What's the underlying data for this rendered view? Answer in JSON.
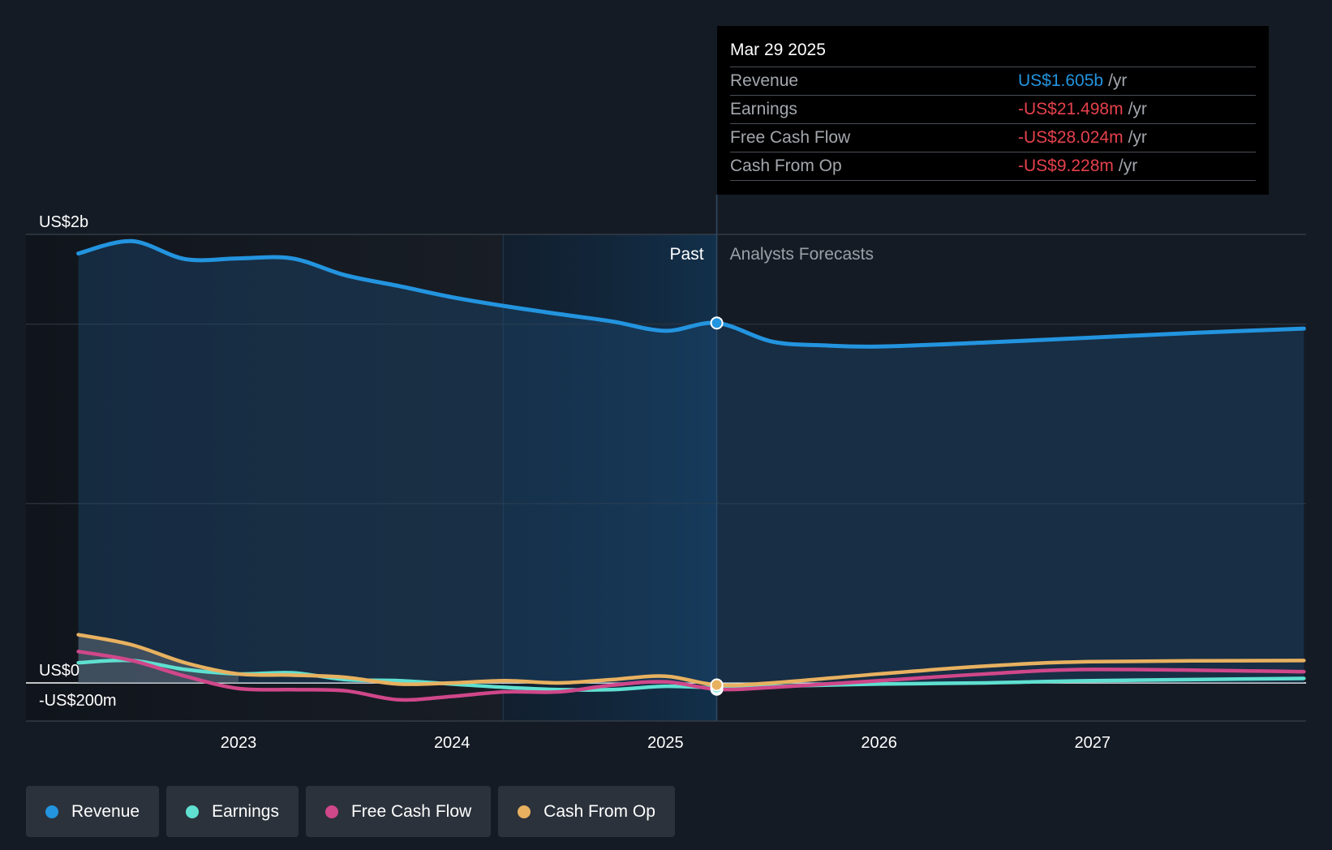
{
  "tooltip": {
    "date": "Mar 29 2025",
    "rows": [
      {
        "label": "Revenue",
        "value": "US$1.605b",
        "unit": "/yr",
        "color": "#2394df"
      },
      {
        "label": "Earnings",
        "value": "-US$21.498m",
        "unit": "/yr",
        "color": "#e5414c"
      },
      {
        "label": "Free Cash Flow",
        "value": "-US$28.024m",
        "unit": "/yr",
        "color": "#e5414c"
      },
      {
        "label": "Cash From Op",
        "value": "-US$9.228m",
        "unit": "/yr",
        "color": "#e5414c"
      }
    ]
  },
  "legend": [
    {
      "label": "Revenue",
      "color": "#2394df"
    },
    {
      "label": "Earnings",
      "color": "#5fe0d0"
    },
    {
      "label": "Free Cash Flow",
      "color": "#d0478a"
    },
    {
      "label": "Cash From Op",
      "color": "#e8b160"
    }
  ],
  "chart_data": {
    "type": "line",
    "y_tick_labels": [
      {
        "label": "US$2b",
        "value": 2000
      },
      {
        "label": "US$0",
        "value": 0
      },
      {
        "label": "-US$200m",
        "value": -200
      }
    ],
    "x_tick_labels": [
      {
        "label": "2023",
        "value": 2023.0
      },
      {
        "label": "2024",
        "value": 2024.0
      },
      {
        "label": "2025",
        "value": 2025.0
      },
      {
        "label": "2026",
        "value": 2026.0
      },
      {
        "label": "2027",
        "value": 2027.0
      }
    ],
    "xlim": [
      2022.0,
      2027.99
    ],
    "ylim": [
      -200,
      2000
    ],
    "past_label": "Past",
    "forecast_label": "Analysts Forecasts",
    "divider_x": 2025.24,
    "highlight_start_x": 2024.24,
    "series": [
      {
        "name": "Revenue",
        "color": "#2394df",
        "points": [
          [
            2022.25,
            1915
          ],
          [
            2022.5,
            1970
          ],
          [
            2022.75,
            1890
          ],
          [
            2023.0,
            1893
          ],
          [
            2023.25,
            1893
          ],
          [
            2023.5,
            1818
          ],
          [
            2023.75,
            1770
          ],
          [
            2024.0,
            1720
          ],
          [
            2024.25,
            1680
          ],
          [
            2024.5,
            1645
          ],
          [
            2024.75,
            1612
          ],
          [
            2025.0,
            1570
          ],
          [
            2025.24,
            1605
          ],
          [
            2025.5,
            1522
          ],
          [
            2025.75,
            1505
          ],
          [
            2026.0,
            1500
          ],
          [
            2026.5,
            1518
          ],
          [
            2027.0,
            1540
          ],
          [
            2027.5,
            1562
          ],
          [
            2027.99,
            1580
          ]
        ]
      },
      {
        "name": "Earnings",
        "color": "#5fe0d0",
        "points": [
          [
            2022.25,
            90
          ],
          [
            2022.5,
            100
          ],
          [
            2022.75,
            60
          ],
          [
            2023.0,
            40
          ],
          [
            2023.25,
            45
          ],
          [
            2023.5,
            15
          ],
          [
            2023.75,
            10
          ],
          [
            2024.0,
            -5
          ],
          [
            2024.25,
            -20
          ],
          [
            2024.5,
            -30
          ],
          [
            2024.75,
            -30
          ],
          [
            2025.0,
            -15
          ],
          [
            2025.24,
            -21
          ],
          [
            2025.5,
            -15
          ],
          [
            2026.0,
            -5
          ],
          [
            2026.5,
            0
          ],
          [
            2027.0,
            10
          ],
          [
            2027.99,
            20
          ]
        ]
      },
      {
        "name": "Free Cash Flow",
        "color": "#d0478a",
        "points": [
          [
            2022.25,
            140
          ],
          [
            2022.5,
            100
          ],
          [
            2022.75,
            30
          ],
          [
            2023.0,
            -25
          ],
          [
            2023.25,
            -30
          ],
          [
            2023.5,
            -35
          ],
          [
            2023.75,
            -75
          ],
          [
            2024.0,
            -60
          ],
          [
            2024.25,
            -40
          ],
          [
            2024.5,
            -40
          ],
          [
            2024.75,
            -10
          ],
          [
            2025.0,
            5
          ],
          [
            2025.24,
            -28
          ],
          [
            2025.5,
            -20
          ],
          [
            2026.0,
            10
          ],
          [
            2026.5,
            40
          ],
          [
            2027.0,
            60
          ],
          [
            2027.99,
            50
          ]
        ]
      },
      {
        "name": "Cash From Op",
        "color": "#e8b160",
        "points": [
          [
            2022.25,
            215
          ],
          [
            2022.5,
            170
          ],
          [
            2022.75,
            90
          ],
          [
            2023.0,
            40
          ],
          [
            2023.25,
            35
          ],
          [
            2023.5,
            25
          ],
          [
            2023.75,
            -5
          ],
          [
            2024.0,
            0
          ],
          [
            2024.25,
            10
          ],
          [
            2024.5,
            0
          ],
          [
            2024.75,
            15
          ],
          [
            2025.0,
            30
          ],
          [
            2025.24,
            -9
          ],
          [
            2025.5,
            0
          ],
          [
            2026.0,
            40
          ],
          [
            2026.5,
            75
          ],
          [
            2027.0,
            95
          ],
          [
            2027.99,
            100
          ]
        ]
      }
    ]
  }
}
